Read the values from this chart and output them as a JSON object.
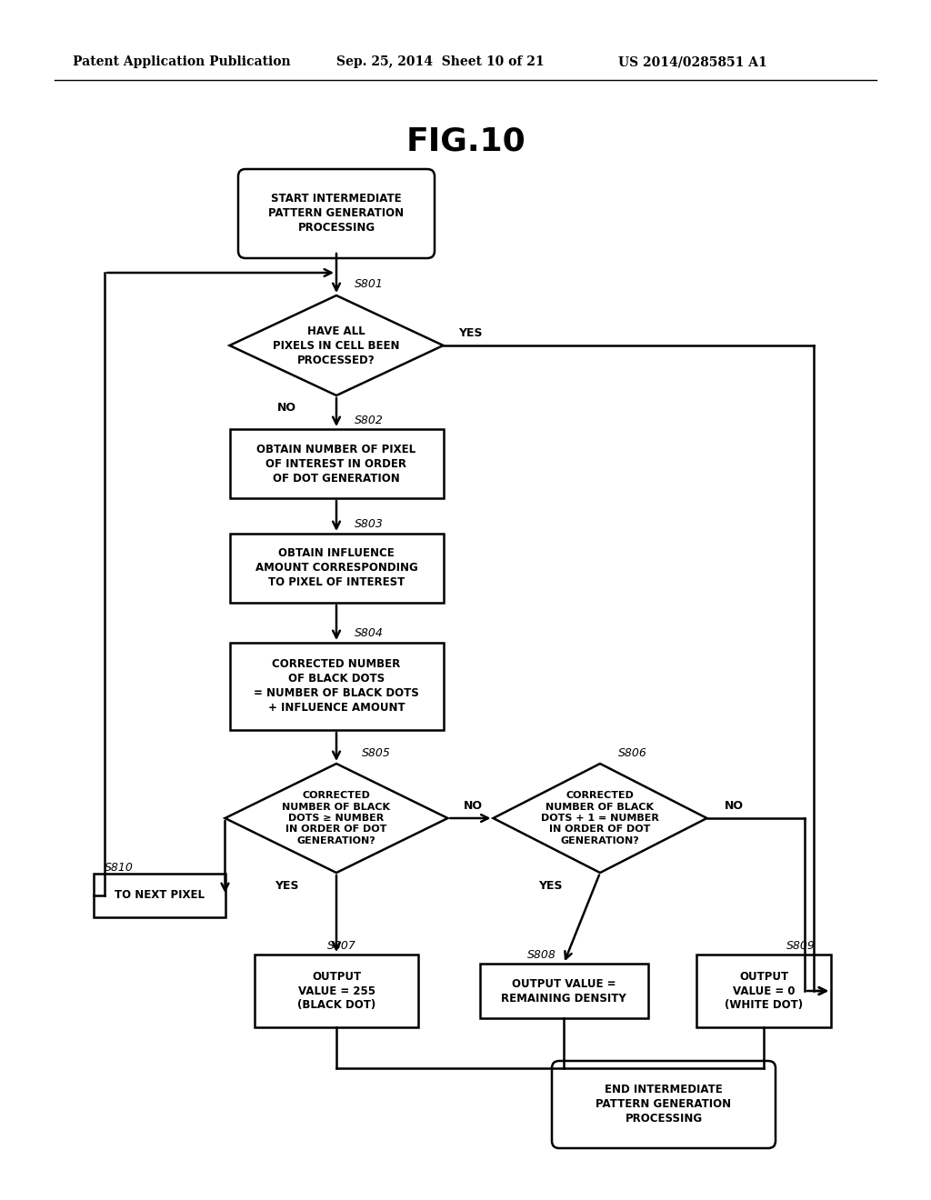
{
  "title": "FIG.10",
  "header_left": "Patent Application Publication",
  "header_center": "Sep. 25, 2014  Sheet 10 of 21",
  "header_right": "US 2014/0285851 A1",
  "background_color": "#ffffff",
  "line_color": "#000000",
  "start_text": "START INTERMEDIATE\nPATTERN GENERATION\nPROCESSING",
  "s801_text": "HAVE ALL\nPIXELS IN CELL BEEN\nPROCESSED?",
  "s802_text": "OBTAIN NUMBER OF PIXEL\nOF INTEREST IN ORDER\nOF DOT GENERATION",
  "s803_text": "OBTAIN INFLUENCE\nAMOUNT CORRESPONDING\nTO PIXEL OF INTEREST",
  "s804_text": "CORRECTED NUMBER\nOF BLACK DOTS\n= NUMBER OF BLACK DOTS\n+ INFLUENCE AMOUNT",
  "s805_text": "CORRECTED\nNUMBER OF BLACK\nDOTS ≥ NUMBER\nIN ORDER OF DOT\nGENERATION?",
  "s806_text": "CORRECTED\nNUMBER OF BLACK\nDOTS + 1 = NUMBER\nIN ORDER OF DOT\nGENERATION?",
  "s807_text": "OUTPUT\nVALUE = 255\n(BLACK DOT)",
  "s808_text": "OUTPUT VALUE =\nREMAINING DENSITY",
  "s809_text": "OUTPUT\nVALUE = 0\n(WHITE DOT)",
  "s810_text": "TO NEXT PIXEL",
  "end_text": "END INTERMEDIATE\nPATTERN GENERATION\nPROCESSING"
}
